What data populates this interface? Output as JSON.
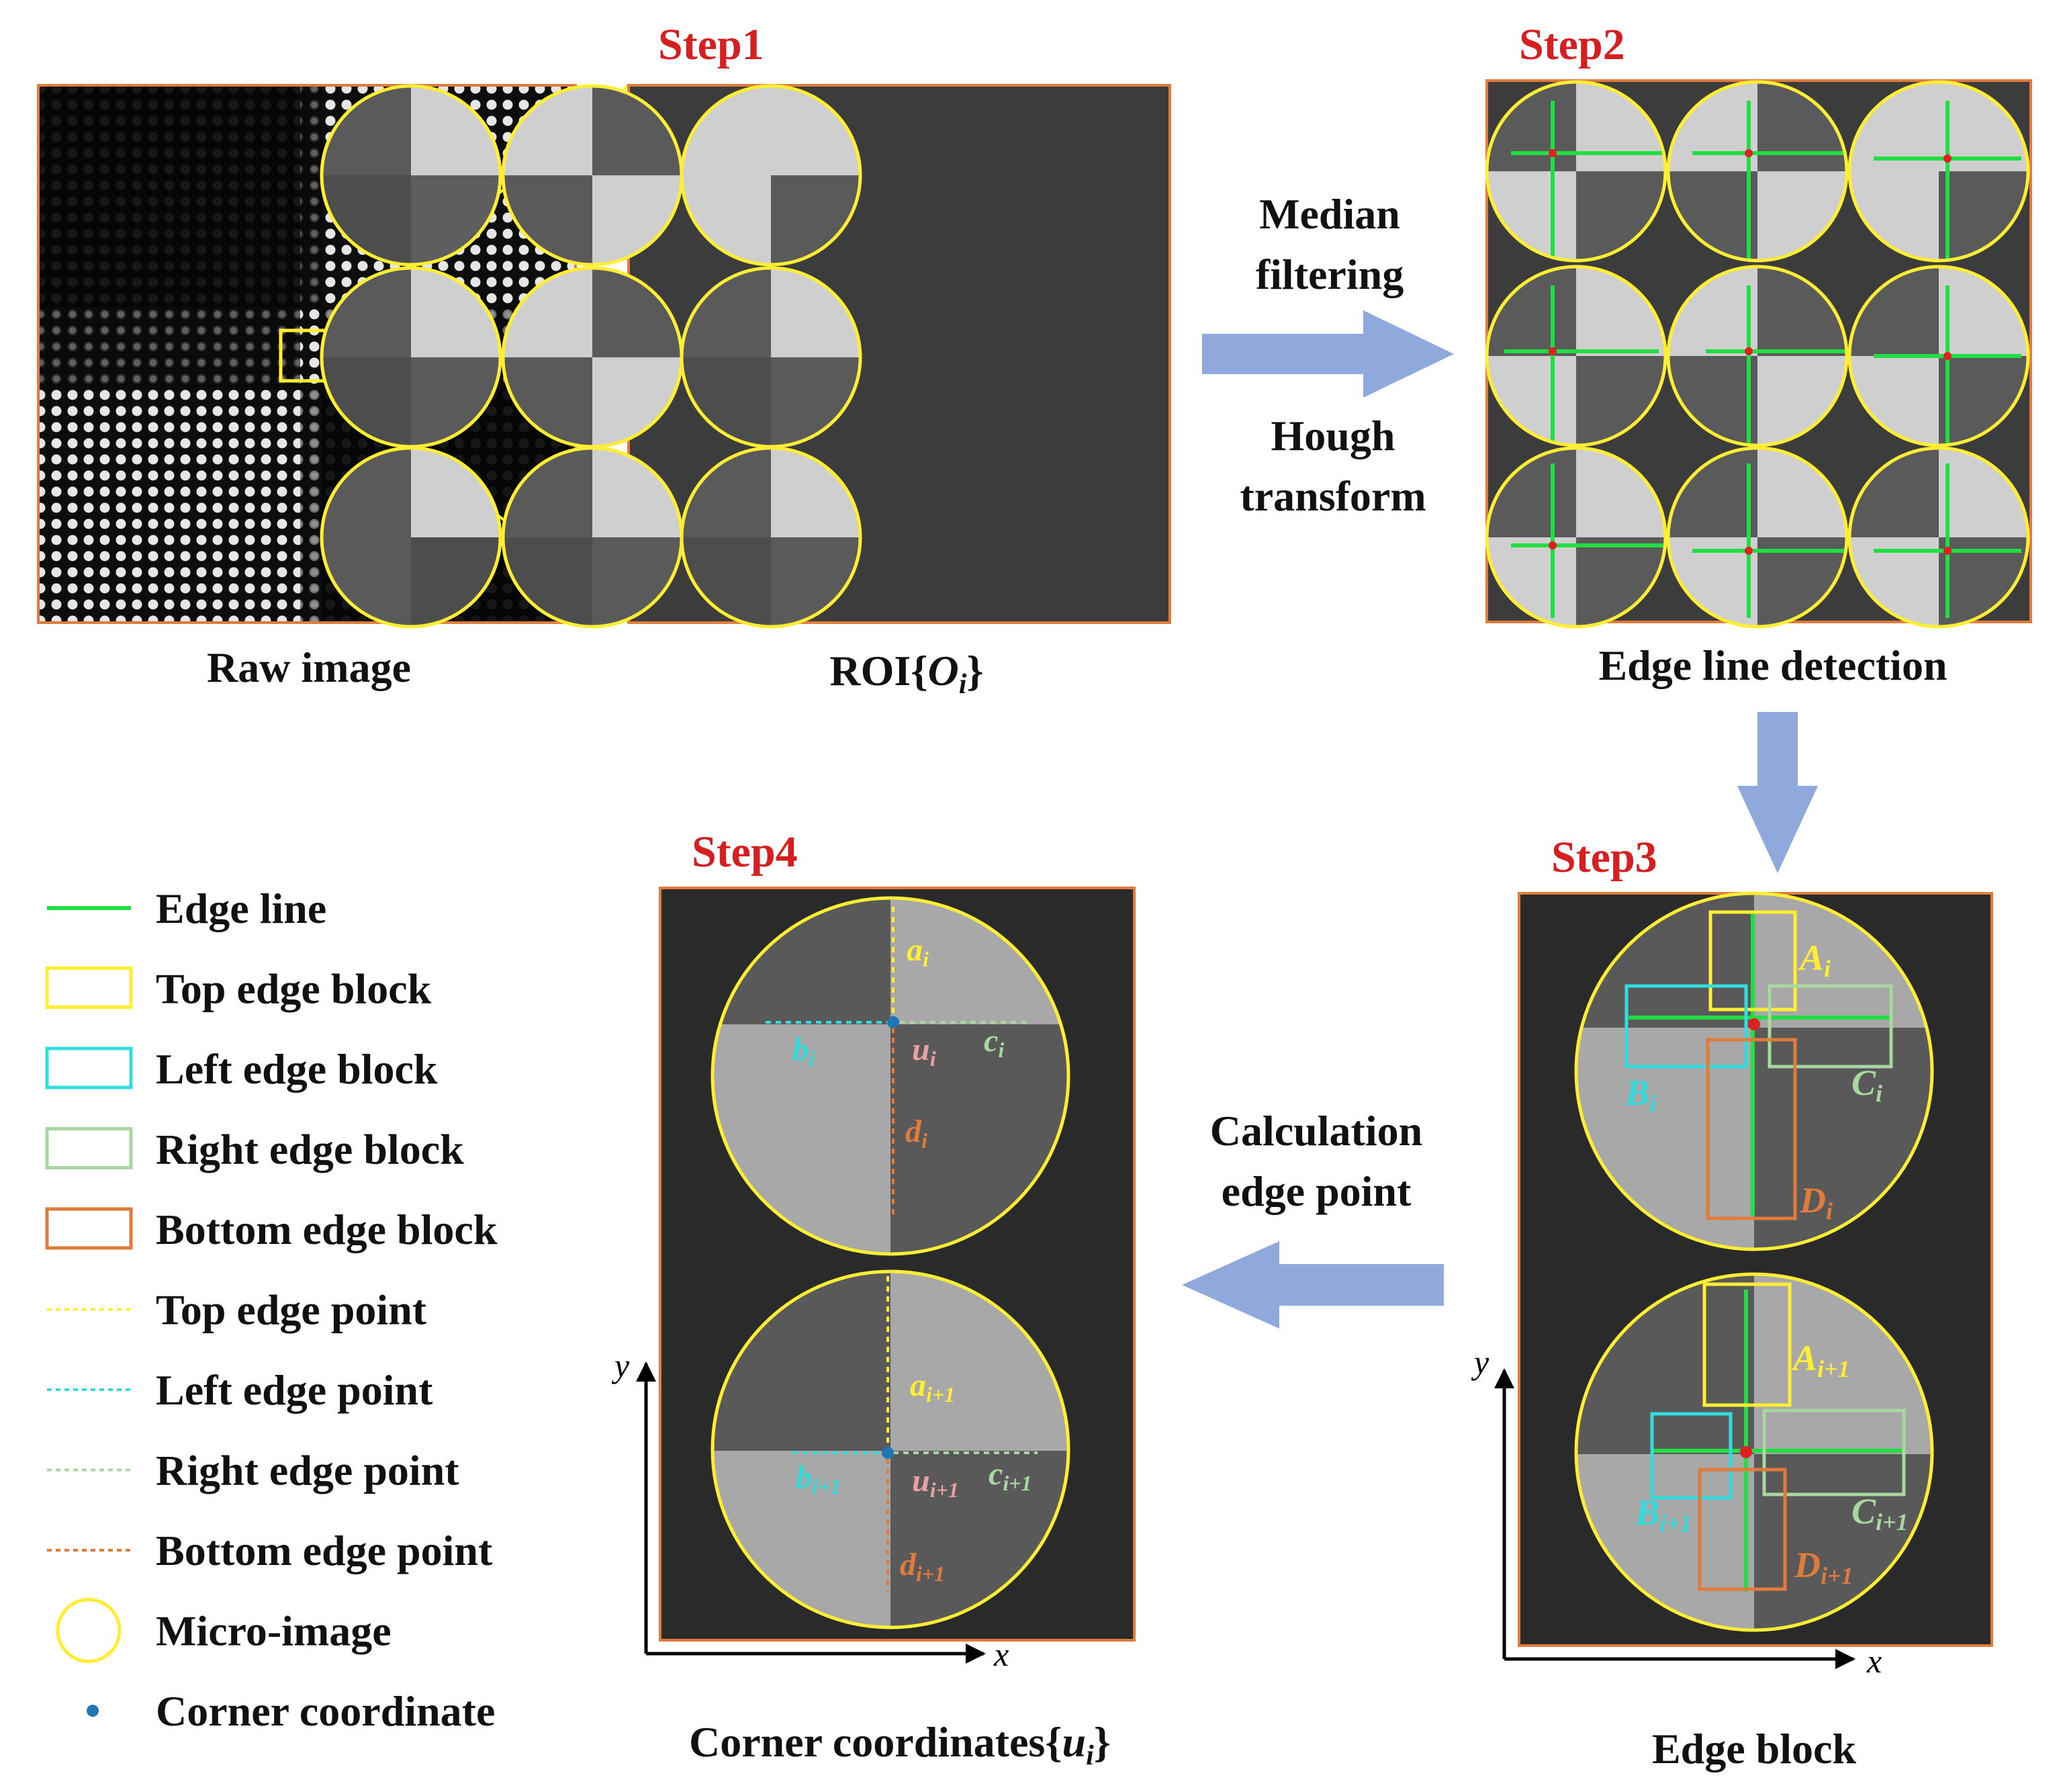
{
  "colors": {
    "step_text": "#d42020",
    "frame_orange": "#e07b3c",
    "micro_image_yellow": "#ffee33",
    "edge_line_green": "#22dd44",
    "left_block_cyan": "#33dddd",
    "right_block_green": "#a8d8a0",
    "bottom_block_orange": "#e07b3c",
    "arrow_blue": "#8fa9dd",
    "corner_blue": "#1f77b4",
    "corner_red": "#e02020"
  },
  "steps": {
    "step1": "Step1",
    "step2": "Step2",
    "step3": "Step3",
    "step4": "Step4"
  },
  "captions": {
    "raw_image": "Raw image",
    "roi": "ROI{",
    "roi_var": "O",
    "roi_sub": "i",
    "roi_close": "}",
    "edge_line_detection": "Edge line detection",
    "edge_block": "Edge block",
    "corner_coords": "Corner coordinates{",
    "corner_var": "u",
    "corner_sub": "i",
    "corner_close": "}"
  },
  "process": {
    "median_1": "Median",
    "median_2": "filtering",
    "hough_1": "Hough",
    "hough_2": "transform",
    "calc_1": "Calculation",
    "calc_2": "edge point"
  },
  "axes": {
    "x": "x",
    "y": "y"
  },
  "step3_labels": {
    "A": "A",
    "A_sub": "i",
    "B": "B",
    "B_sub": "i",
    "C": "C",
    "C_sub": "i",
    "D": "D",
    "D_sub": "i",
    "A2": "A",
    "A2_sub": "i+1",
    "B2": "B",
    "B2_sub": "i+1",
    "C2": "C",
    "C2_sub": "i+1",
    "D2": "D",
    "D2_sub": "i+1"
  },
  "step4_labels": {
    "a": "a",
    "a_sub": "i",
    "b": "b",
    "b_sub": "i",
    "c": "c",
    "c_sub": "i",
    "d": "d",
    "d_sub": "i",
    "u": "u",
    "u_sub": "i",
    "a2": "a",
    "a2_sub": "i+1",
    "b2": "b",
    "b2_sub": "i+1",
    "c2": "c",
    "c2_sub": "i+1",
    "d2": "d",
    "d2_sub": "i+1",
    "u2": "u",
    "u2_sub": "i+1"
  },
  "legend": [
    {
      "label": "Edge line",
      "symbol": "solid-line",
      "color": "#22dd44"
    },
    {
      "label": "Top edge block",
      "symbol": "rect",
      "color": "#ffee33"
    },
    {
      "label": "Left edge block",
      "symbol": "rect",
      "color": "#33dddd"
    },
    {
      "label": "Right edge block",
      "symbol": "rect",
      "color": "#a8d8a0"
    },
    {
      "label": "Bottom edge block",
      "symbol": "rect",
      "color": "#e07b3c"
    },
    {
      "label": "Top edge point",
      "symbol": "dotted-line",
      "color": "#ffee33"
    },
    {
      "label": "Left edge point",
      "symbol": "dotted-line",
      "color": "#33dddd"
    },
    {
      "label": "Right edge point",
      "symbol": "dotted-line",
      "color": "#a8d8a0"
    },
    {
      "label": "Bottom edge point",
      "symbol": "dotted-line",
      "color": "#e07b3c"
    },
    {
      "label": "Micro-image",
      "symbol": "circle",
      "color": "#ffee33"
    },
    {
      "label": "Corner coordinate",
      "symbol": "dot",
      "color": "#1f77b4"
    }
  ]
}
